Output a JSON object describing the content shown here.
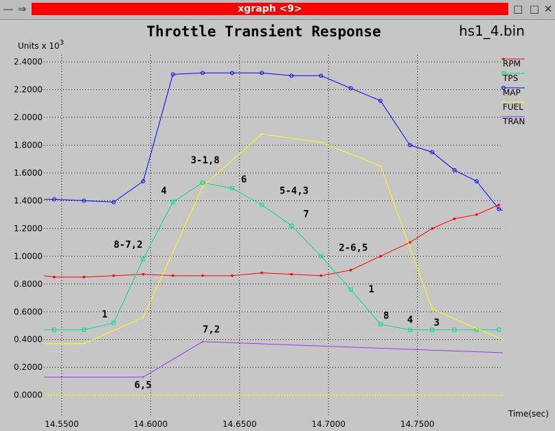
{
  "window": {
    "title": "xgraph <9>",
    "menu_glyph": "—",
    "pin_glyph": "⇒",
    "min_glyph": "□",
    "close_glyph": "✕"
  },
  "chart_data": {
    "type": "line",
    "title": "Throttle Transient Response",
    "file_label": "hs1_4.bin",
    "ylabel_text": "Units x 10",
    "ylabel_exp": "3",
    "xlabel": "Time(sec)",
    "xlim": [
      14.54,
      14.798
    ],
    "ylim": [
      -0.15,
      2.45
    ],
    "grid": true,
    "legend_position": "top-right",
    "xticks": [
      14.55,
      14.6,
      14.65,
      14.7,
      14.75
    ],
    "xtick_labels": [
      "14.5500",
      "14.6000",
      "14.6500",
      "14.7000",
      "14.7500"
    ],
    "yticks": [
      0,
      0.2,
      0.4,
      0.6,
      0.8,
      1.0,
      1.2,
      1.4,
      1.6,
      1.8,
      2.0,
      2.2,
      2.4
    ],
    "ytick_labels": [
      "0.0000",
      "0.2000",
      "0.4000",
      "0.6000",
      "0.8000",
      "1.0000",
      "1.2000",
      "1.4000",
      "1.6000",
      "1.8000",
      "2.0000",
      "2.2000",
      "2.4000"
    ],
    "series": [
      {
        "name": "RPM",
        "color": "#ff0000",
        "marker": "dot",
        "points": [
          [
            14.54,
            0.86
          ],
          [
            14.5458,
            0.85
          ],
          [
            14.5625,
            0.85
          ],
          [
            14.5792,
            0.86
          ],
          [
            14.5958,
            0.87
          ],
          [
            14.6125,
            0.86
          ],
          [
            14.6292,
            0.86
          ],
          [
            14.6458,
            0.86
          ],
          [
            14.6625,
            0.88
          ],
          [
            14.6792,
            0.87
          ],
          [
            14.6958,
            0.86
          ],
          [
            14.7125,
            0.9
          ],
          [
            14.7292,
            1.0
          ],
          [
            14.7458,
            1.1
          ],
          [
            14.7583,
            1.2
          ],
          [
            14.7708,
            1.27
          ],
          [
            14.7833,
            1.3
          ],
          [
            14.7958,
            1.37
          ]
        ]
      },
      {
        "name": "TPS",
        "color": "#00e080",
        "marker": "square",
        "points": [
          [
            14.54,
            0.47
          ],
          [
            14.5458,
            0.47
          ],
          [
            14.5625,
            0.47
          ],
          [
            14.5792,
            0.52
          ],
          [
            14.5958,
            0.98
          ],
          [
            14.6125,
            1.39
          ],
          [
            14.6292,
            1.53
          ],
          [
            14.6458,
            1.49
          ],
          [
            14.6625,
            1.37
          ],
          [
            14.6792,
            1.22
          ],
          [
            14.6958,
            1.0
          ],
          [
            14.7125,
            0.76
          ],
          [
            14.7292,
            0.51
          ],
          [
            14.7458,
            0.47
          ],
          [
            14.7583,
            0.47
          ],
          [
            14.7708,
            0.47
          ],
          [
            14.7833,
            0.47
          ],
          [
            14.7958,
            0.47
          ]
        ]
      },
      {
        "name": "MAP",
        "color": "#0000ff",
        "marker": "circle",
        "points": [
          [
            14.54,
            1.41
          ],
          [
            14.5458,
            1.41
          ],
          [
            14.5625,
            1.4
          ],
          [
            14.5792,
            1.39
          ],
          [
            14.5958,
            1.54
          ],
          [
            14.6125,
            2.31
          ],
          [
            14.6292,
            2.32
          ],
          [
            14.6458,
            2.32
          ],
          [
            14.6625,
            2.32
          ],
          [
            14.6792,
            2.3
          ],
          [
            14.6958,
            2.3
          ],
          [
            14.7125,
            2.21
          ],
          [
            14.7292,
            2.12
          ],
          [
            14.7458,
            1.8
          ],
          [
            14.7583,
            1.75
          ],
          [
            14.7708,
            1.62
          ],
          [
            14.7833,
            1.54
          ],
          [
            14.7958,
            1.34
          ],
          [
            14.798,
            1.33
          ]
        ]
      },
      {
        "name": "FUEL",
        "color": "#ffff00",
        "marker": "tick",
        "points": [
          [
            14.54,
            0.37
          ],
          [
            14.5625,
            0.37
          ],
          [
            14.5958,
            0.56
          ],
          [
            14.6292,
            1.5
          ],
          [
            14.6625,
            1.88
          ],
          [
            14.6958,
            1.82
          ],
          [
            14.7292,
            1.65
          ],
          [
            14.7583,
            0.62
          ],
          [
            14.7833,
            0.48
          ],
          [
            14.798,
            0.4
          ]
        ]
      },
      {
        "name": "TRAN",
        "color": "#9933ee",
        "marker": "tick",
        "points": [
          [
            14.54,
            0.13
          ],
          [
            14.5958,
            0.13
          ],
          [
            14.6292,
            0.385
          ],
          [
            14.798,
            0.305
          ]
        ]
      },
      {
        "name": "",
        "color": "#ffff00",
        "marker": "none",
        "points": [
          [
            14.54,
            0.0
          ],
          [
            14.798,
            0.0
          ]
        ]
      }
    ],
    "annotations": [
      {
        "text": "8-7,2",
        "x": 14.5792,
        "y": 1.06
      },
      {
        "text": "4",
        "x": 14.6058,
        "y": 1.45
      },
      {
        "text": "3-1,8",
        "x": 14.6225,
        "y": 1.67
      },
      {
        "text": "6",
        "x": 14.6508,
        "y": 1.53
      },
      {
        "text": "5-4,3",
        "x": 14.6725,
        "y": 1.45
      },
      {
        "text": "7",
        "x": 14.6858,
        "y": 1.28
      },
      {
        "text": "2-6,5",
        "x": 14.7058,
        "y": 1.04
      },
      {
        "text": "1",
        "x": 14.7225,
        "y": 0.74
      },
      {
        "text": "8",
        "x": 14.7308,
        "y": 0.55
      },
      {
        "text": "4",
        "x": 14.7442,
        "y": 0.52
      },
      {
        "text": "3",
        "x": 14.7592,
        "y": 0.5
      },
      {
        "text": "1",
        "x": 14.5725,
        "y": 0.56
      },
      {
        "text": "7,2",
        "x": 14.6292,
        "y": 0.45
      },
      {
        "text": "6,5",
        "x": 14.5908,
        "y": 0.05
      }
    ]
  }
}
